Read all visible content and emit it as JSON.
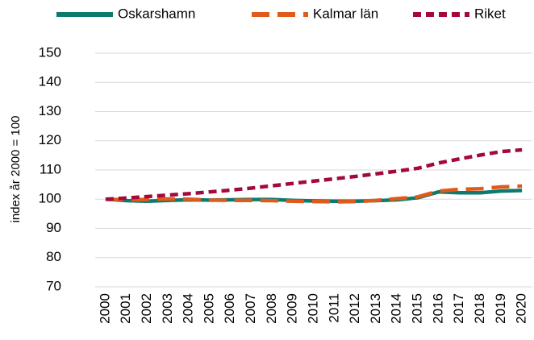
{
  "chart_data": {
    "type": "line",
    "y_label": "index år 2000 = 100",
    "categories": [
      "2000",
      "2001",
      "2002",
      "2003",
      "2004",
      "2005",
      "2006",
      "2007",
      "2008",
      "2009",
      "2010",
      "2011",
      "2012",
      "2013",
      "2014",
      "2015",
      "2016",
      "2017",
      "2018",
      "2019",
      "2020"
    ],
    "series": [
      {
        "name": "Oskarshamn",
        "color": "#0e7a6e",
        "values": [
          100,
          99.5,
          99.3,
          99.6,
          99.8,
          99.7,
          99.8,
          99.9,
          99.9,
          99.6,
          99.4,
          99.3,
          99.3,
          99.5,
          99.8,
          100.5,
          102.5,
          102.2,
          102.2,
          102.8,
          103
        ]
      },
      {
        "name": "Kalmar län",
        "color": "#e05a1c",
        "values": [
          100,
          99.8,
          99.9,
          100.1,
          100,
          99.7,
          99.6,
          99.6,
          99.5,
          99.3,
          99.2,
          99.1,
          99.2,
          99.6,
          100.2,
          100.8,
          102.8,
          103.4,
          103.6,
          104.2,
          104.5
        ]
      },
      {
        "name": "Riket",
        "color": "#a3093f",
        "values": [
          100,
          100.4,
          100.9,
          101.4,
          101.9,
          102.5,
          103.1,
          103.8,
          104.6,
          105.4,
          106.2,
          107,
          107.8,
          108.7,
          109.6,
          110.6,
          112.4,
          113.8,
          115.1,
          116.3,
          116.9
        ]
      }
    ],
    "ylim": [
      70,
      150
    ],
    "yticks": [
      70,
      80,
      90,
      100,
      110,
      120,
      130,
      140,
      150
    ],
    "grid": true,
    "legend": "top"
  }
}
